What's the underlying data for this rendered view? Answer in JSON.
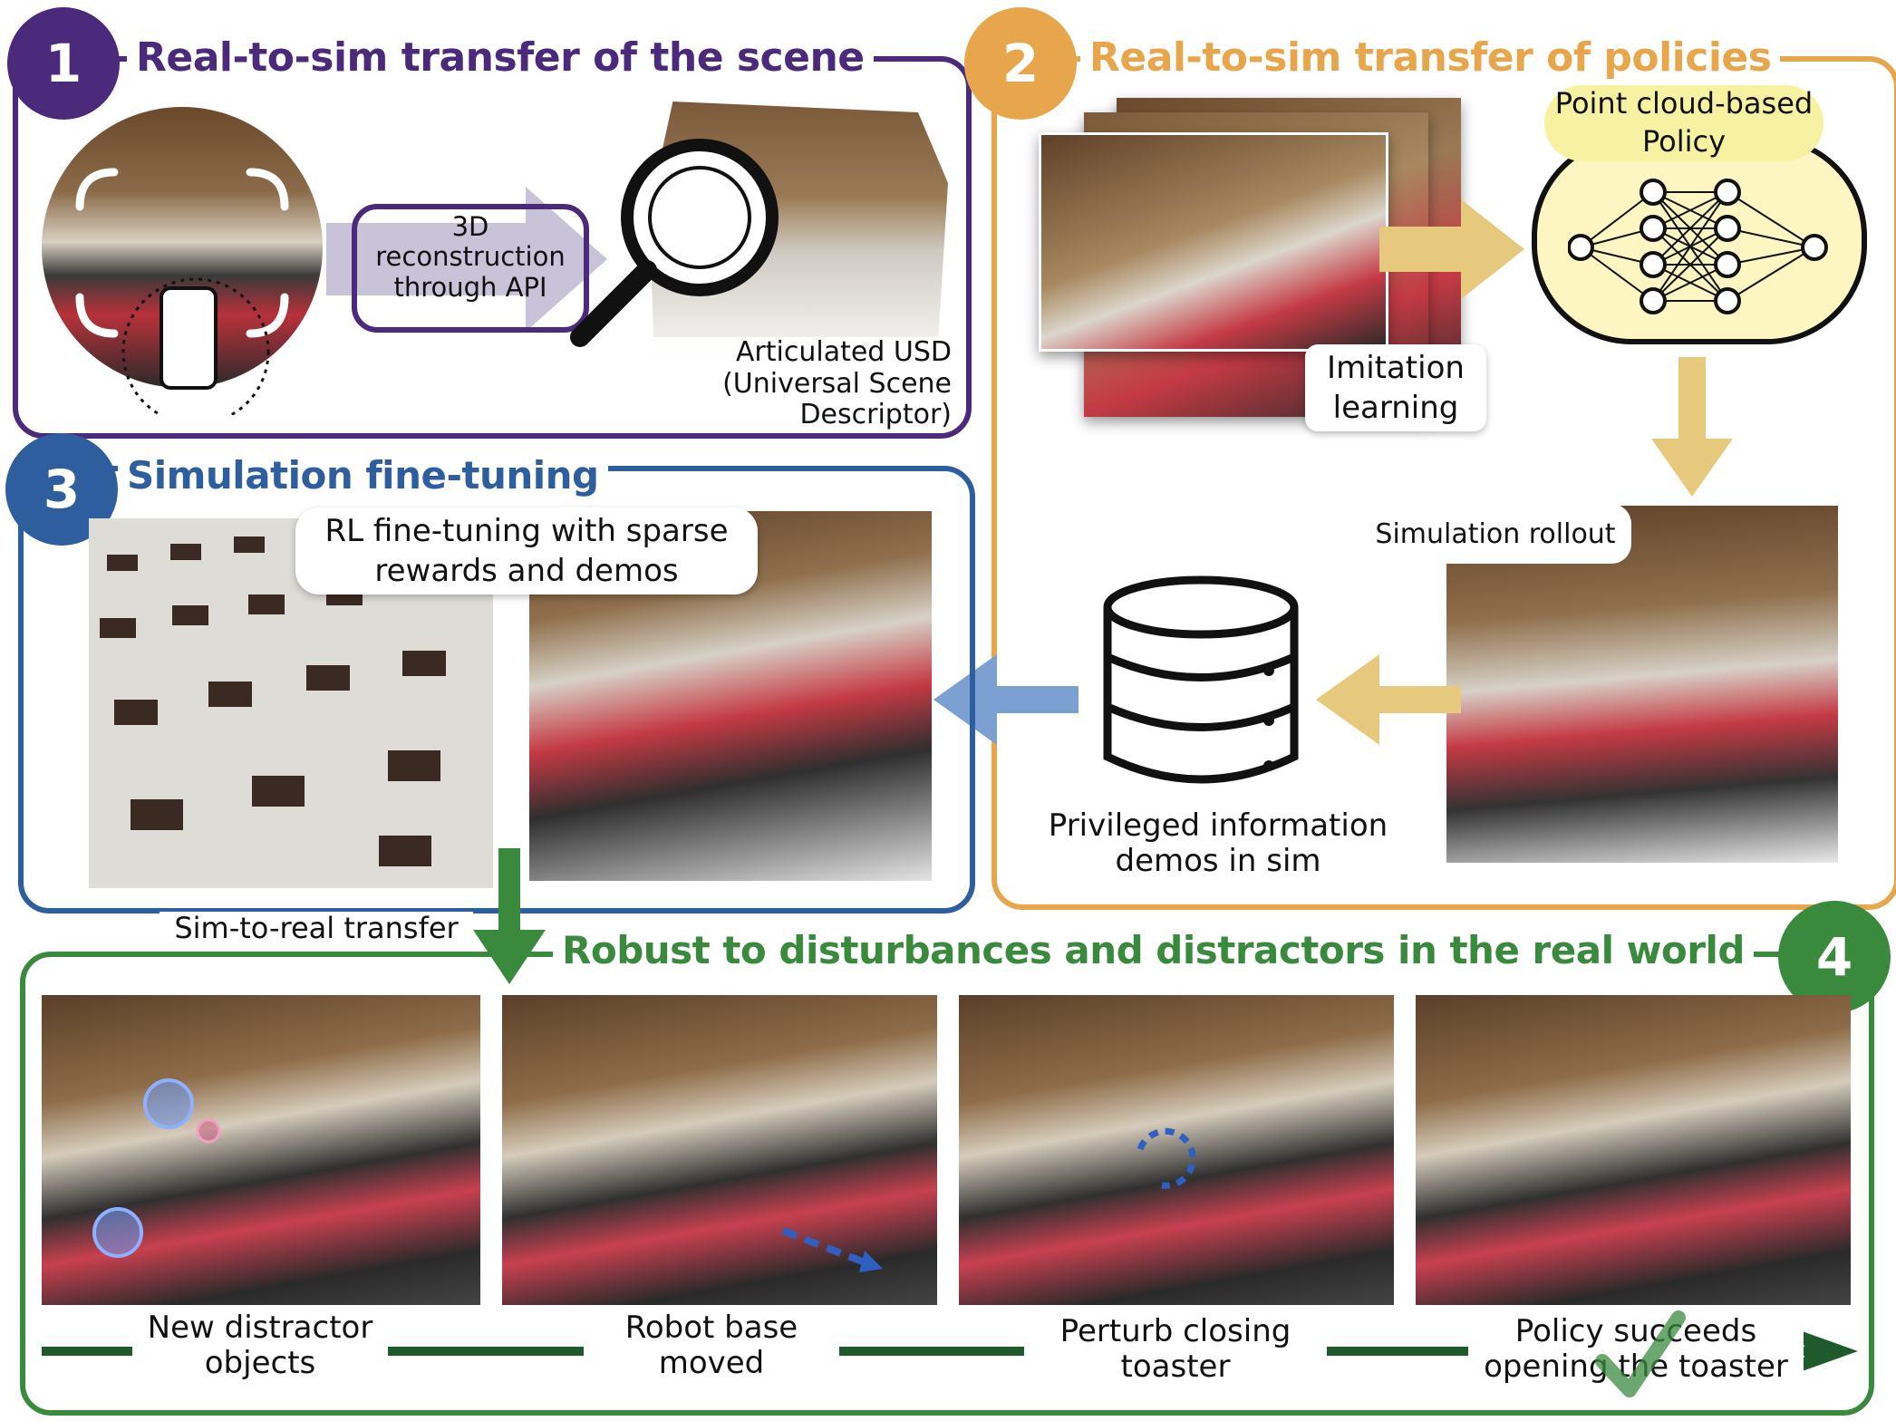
{
  "sections": {
    "s1": {
      "number": "1",
      "title": "Real-to-sim transfer of the scene",
      "color": "#4b2a7b"
    },
    "s2": {
      "number": "2",
      "title": "Real-to-sim transfer of policies",
      "color": "#e7a64b"
    },
    "s3": {
      "number": "3",
      "title": "Simulation fine-tuning",
      "color": "#2f5e9e"
    },
    "s4": {
      "number": "4",
      "title": "Robust to disturbances and distractors in the real world",
      "color": "#3a8a3e"
    }
  },
  "s1": {
    "reconstruction_line1": "3D",
    "reconstruction_line2": "reconstruction",
    "reconstruction_line3": "through API",
    "usd_line1": "Articulated USD",
    "usd_line2": "(Universal Scene Descriptor)"
  },
  "s2": {
    "policy_line1": "Point cloud-based",
    "policy_line2": "Policy",
    "imitation_line1": "Imitation",
    "imitation_line2": "learning",
    "rollout": "Simulation rollout",
    "privileged_line1": "Privileged information",
    "privileged_line2": "demos in sim"
  },
  "s3": {
    "rl_line1": "RL fine-tuning with sparse",
    "rl_line2": "rewards and demos",
    "sim_to_real": "Sim-to-real transfer"
  },
  "s4": {
    "steps": [
      {
        "line1": "New distractor",
        "line2": "objects"
      },
      {
        "line1": "Robot base",
        "line2": "moved"
      },
      {
        "line1": "Perturb closing",
        "line2": "toaster"
      },
      {
        "line1": "Policy succeeds",
        "line2": "opening the toaster"
      }
    ]
  },
  "icons": [
    "phone-scan-icon",
    "magnifier-icon",
    "neural-network-icon",
    "database-icon",
    "checkmark-icon",
    "arrow-icon"
  ]
}
